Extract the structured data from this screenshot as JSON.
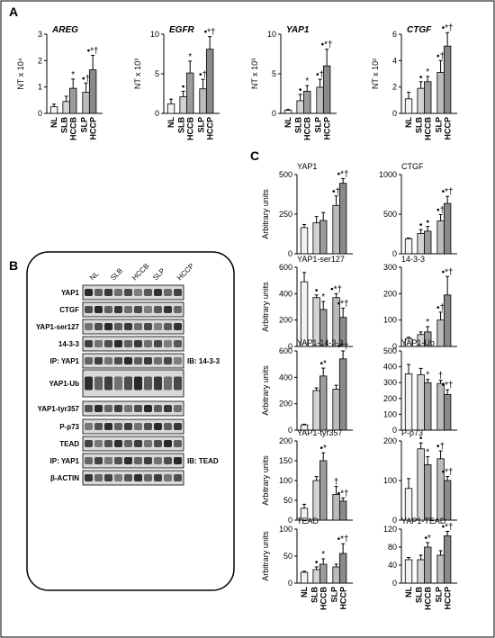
{
  "panels": {
    "a": "A",
    "b": "B",
    "c": "C"
  },
  "x_categories": [
    "NL",
    "SLB",
    "HCCB",
    "SLP",
    "HCCP"
  ],
  "group_labels": {
    "row1": [
      "SLB",
      "SLP"
    ],
    "row2": [
      "HCCB",
      "HCCP"
    ],
    "nl": "NL"
  },
  "chart_data": [
    {
      "type": "bar",
      "panel": "A",
      "title": "AREG",
      "ylabel": "NT x 10⁴",
      "ylim": [
        0,
        3
      ],
      "yticks": [
        0,
        1,
        2,
        3
      ],
      "categories": [
        "NL",
        "SLB",
        "HCCB",
        "SLP",
        "HCCP"
      ],
      "values": [
        0.25,
        0.45,
        0.95,
        0.8,
        1.65
      ],
      "errors": [
        0.1,
        0.2,
        0.35,
        0.35,
        0.55
      ],
      "annotations": [
        "",
        "",
        "*",
        "•†",
        "•*†"
      ]
    },
    {
      "type": "bar",
      "panel": "A",
      "title": "EGFR",
      "ylabel": "NT x 10³",
      "ylim": [
        0,
        10
      ],
      "yticks": [
        0,
        5,
        10
      ],
      "categories": [
        "NL",
        "SLB",
        "HCCB",
        "SLP",
        "HCCP"
      ],
      "values": [
        1.2,
        2.1,
        5.1,
        3.1,
        8.1
      ],
      "errors": [
        0.6,
        0.7,
        1.5,
        1.2,
        1.6
      ],
      "annotations": [
        "",
        "•",
        "*",
        "•†",
        "•*†"
      ]
    },
    {
      "type": "bar",
      "panel": "A",
      "title": "YAP1",
      "ylabel": "NT x 10³",
      "ylim": [
        0,
        10
      ],
      "yticks": [
        0,
        5,
        10
      ],
      "categories": [
        "NL",
        "SLB",
        "HCCB",
        "SLP",
        "HCCP"
      ],
      "values": [
        0.4,
        1.6,
        2.8,
        3.3,
        6.0
      ],
      "errors": [
        0.1,
        0.8,
        0.7,
        1.0,
        2.1
      ],
      "annotations": [
        "",
        "•",
        "*",
        "•†",
        "•*†"
      ]
    },
    {
      "type": "bar",
      "panel": "A",
      "title": "CTGF",
      "ylabel": "NT x 10²",
      "ylim": [
        0,
        6
      ],
      "yticks": [
        0,
        2,
        4,
        6
      ],
      "categories": [
        "NL",
        "SLB",
        "HCCB",
        "SLP",
        "HCCP"
      ],
      "values": [
        1.1,
        1.9,
        2.4,
        3.1,
        5.1
      ],
      "errors": [
        0.5,
        0.5,
        0.4,
        0.9,
        1.1
      ],
      "annotations": [
        "",
        "•",
        "*",
        "•†",
        "•*†"
      ]
    },
    {
      "type": "bar",
      "panel": "C",
      "title": "YAP1",
      "ylabel": "Arbitrary units",
      "ylim": [
        0,
        500
      ],
      "yticks": [
        0,
        250,
        500
      ],
      "categories": [
        "NL",
        "SLB",
        "HCCB",
        "SLP",
        "HCCP"
      ],
      "values": [
        165,
        195,
        210,
        305,
        445
      ],
      "errors": [
        20,
        40,
        50,
        60,
        30
      ],
      "annotations": [
        "",
        "",
        "",
        "•†",
        "•*†"
      ]
    },
    {
      "type": "bar",
      "panel": "C",
      "title": "CTGF",
      "ylabel": "",
      "ylim": [
        0,
        1000
      ],
      "yticks": [
        0,
        500,
        1000
      ],
      "categories": [
        "NL",
        "SLB",
        "HCCB",
        "SLP",
        "HCCP"
      ],
      "values": [
        190,
        255,
        285,
        415,
        635
      ],
      "errors": [
        10,
        50,
        60,
        80,
        90
      ],
      "annotations": [
        "",
        "•",
        "•",
        "•†",
        "•*†"
      ]
    },
    {
      "type": "bar",
      "panel": "C",
      "title": "YAP1-ser127",
      "ylabel": "Arbitrary units",
      "ylim": [
        0,
        600
      ],
      "yticks": [
        0,
        200,
        400,
        600
      ],
      "categories": [
        "NL",
        "SLB",
        "HCCB",
        "SLP",
        "HCCP"
      ],
      "values": [
        490,
        370,
        280,
        370,
        220
      ],
      "errors": [
        70,
        20,
        60,
        30,
        70
      ],
      "annotations": [
        "",
        "•",
        "*",
        "•*†",
        "•*†"
      ]
    },
    {
      "type": "bar",
      "panel": "C",
      "title": "14-3-3",
      "ylabel": "",
      "ylim": [
        0,
        300
      ],
      "yticks": [
        0,
        100,
        200,
        300
      ],
      "categories": [
        "NL",
        "SLB",
        "HCCB",
        "SLP",
        "HCCP"
      ],
      "values": [
        30,
        45,
        55,
        100,
        195
      ],
      "errors": [
        5,
        10,
        20,
        30,
        70
      ],
      "annotations": [
        "",
        "",
        "*",
        "•†",
        "•*†"
      ]
    },
    {
      "type": "bar",
      "panel": "C",
      "title": "YAP1-14-3-3",
      "ylabel": "Arbitrary units",
      "ylim": [
        0,
        600
      ],
      "yticks": [
        0,
        200,
        400,
        600
      ],
      "categories": [
        "NL",
        "SLB",
        "HCCB",
        "SLP",
        "HCCP"
      ],
      "values": [
        40,
        300,
        410,
        310,
        540
      ],
      "errors": [
        5,
        20,
        60,
        30,
        60
      ],
      "annotations": [
        "",
        "",
        "•*",
        "",
        "•*†"
      ]
    },
    {
      "type": "bar",
      "panel": "C",
      "title": "YAP1-Ub",
      "ylabel": "",
      "ylim": [
        0,
        500
      ],
      "yticks": [
        0,
        100,
        200,
        300,
        400,
        500
      ],
      "categories": [
        "NL",
        "SLB",
        "HCCB",
        "SLP",
        "HCCP"
      ],
      "values": [
        355,
        350,
        300,
        295,
        225
      ],
      "errors": [
        60,
        40,
        20,
        20,
        30
      ],
      "annotations": [
        "",
        "",
        "*",
        "†",
        "•*†"
      ]
    },
    {
      "type": "bar",
      "panel": "C",
      "title": "YAP1-tyr357",
      "ylabel": "Arbitrary units",
      "ylim": [
        0,
        200
      ],
      "yticks": [
        0,
        50,
        100,
        150,
        200
      ],
      "categories": [
        "NL",
        "SLB",
        "HCCB",
        "SLP",
        "HCCP"
      ],
      "values": [
        30,
        100,
        150,
        65,
        48
      ],
      "errors": [
        10,
        10,
        20,
        20,
        8
      ],
      "annotations": [
        "",
        "",
        "•*",
        "†",
        "•*†"
      ]
    },
    {
      "type": "bar",
      "panel": "C",
      "title": "P-p73",
      "ylabel": "",
      "ylim": [
        0,
        200
      ],
      "yticks": [
        0,
        100,
        200
      ],
      "categories": [
        "NL",
        "SLB",
        "HCCB",
        "SLP",
        "HCCP"
      ],
      "values": [
        80,
        180,
        140,
        155,
        100
      ],
      "errors": [
        25,
        15,
        20,
        20,
        10
      ],
      "annotations": [
        "",
        "•",
        "*",
        "•†",
        "•*†"
      ]
    },
    {
      "type": "bar",
      "panel": "C",
      "title": "TEAD",
      "ylabel": "Arbitrary units",
      "ylim": [
        0,
        100
      ],
      "yticks": [
        0,
        50,
        100
      ],
      "categories": [
        "NL",
        "SLB",
        "HCCB",
        "SLP",
        "HCCP"
      ],
      "values": [
        20,
        25,
        35,
        30,
        55
      ],
      "errors": [
        2,
        5,
        10,
        5,
        18
      ],
      "annotations": [
        "",
        "•",
        "*",
        "",
        "•*†"
      ]
    },
    {
      "type": "bar",
      "panel": "C",
      "title": "YAP1-TEAD",
      "ylabel": "",
      "ylim": [
        0,
        120
      ],
      "yticks": [
        0,
        40,
        80,
        120
      ],
      "categories": [
        "NL",
        "SLB",
        "HCCB",
        "SLP",
        "HCCP"
      ],
      "values": [
        52,
        52,
        80,
        62,
        105
      ],
      "errors": [
        5,
        10,
        10,
        10,
        10
      ],
      "annotations": [
        "",
        "",
        "•*",
        "",
        "•*†"
      ]
    }
  ],
  "blot": {
    "lane_labels": [
      "NL",
      "SLB",
      "HCCB",
      "SLP",
      "HCCP"
    ],
    "rows": [
      "YAP1",
      "CTGF",
      "YAP1-ser127",
      "14-3-3",
      "IP: YAP1",
      "YAP1-Ub",
      "YAP1-tyr357",
      "P-p73",
      "TEAD",
      "IP: YAP1",
      "β-ACTIN"
    ],
    "ib_labels": {
      "row4": "IB: 14-3-3",
      "row9": "IB: TEAD"
    }
  },
  "colors": {
    "bars": [
      "#f2f2f2",
      "#d3d3d3",
      "#9c9c9c",
      "#bcbcbc",
      "#8a8a8a"
    ],
    "frame": "#000000"
  }
}
